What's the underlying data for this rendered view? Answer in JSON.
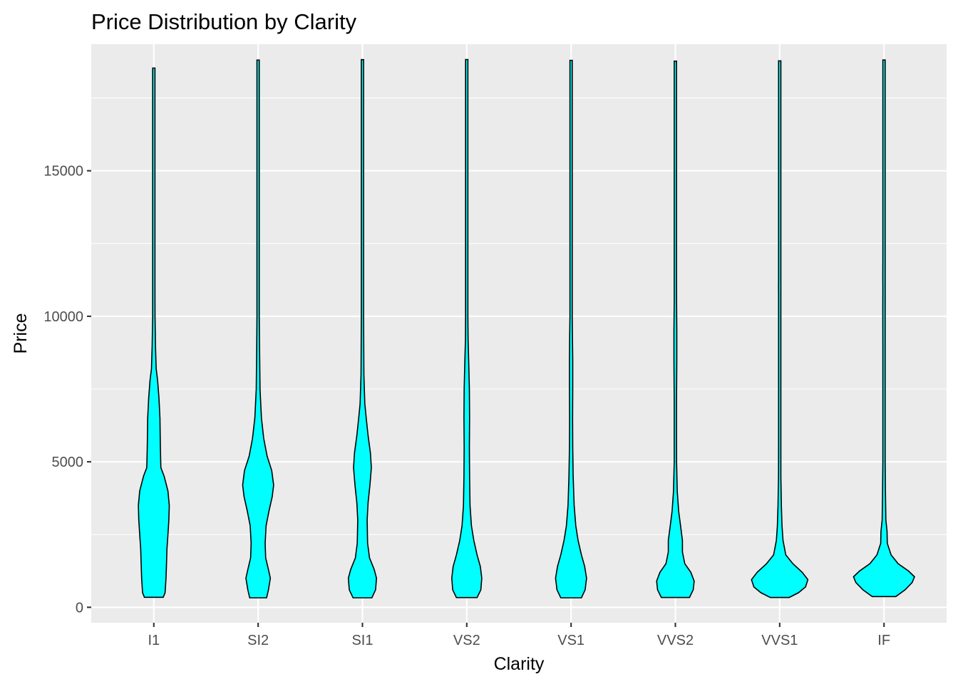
{
  "chart_data": {
    "type": "violin",
    "title": "Price Distribution by Clarity",
    "xlabel": "Clarity",
    "ylabel": "Price",
    "ylim": [
      -530,
      19350
    ],
    "yticks": [
      0,
      5000,
      10000,
      15000
    ],
    "grid": true,
    "fill_color": "#00ffff",
    "outline_color": "#000000",
    "panel_color": "#ebebeb",
    "categories": [
      "I1",
      "SI2",
      "SI1",
      "VS2",
      "VS1",
      "VVS2",
      "VVS1",
      "IF"
    ],
    "series": [
      {
        "category": "I1",
        "min": 345,
        "max": 18531,
        "profile": [
          [
            345,
            0.2
          ],
          [
            500,
            0.24
          ],
          [
            1000,
            0.26
          ],
          [
            1500,
            0.27
          ],
          [
            2000,
            0.28
          ],
          [
            2500,
            0.3
          ],
          [
            3000,
            0.32
          ],
          [
            3500,
            0.33
          ],
          [
            4000,
            0.3
          ],
          [
            4500,
            0.22
          ],
          [
            4800,
            0.15
          ],
          [
            5500,
            0.14
          ],
          [
            6500,
            0.13
          ],
          [
            7200,
            0.11
          ],
          [
            7800,
            0.08
          ],
          [
            8200,
            0.05
          ],
          [
            9000,
            0.035
          ],
          [
            10000,
            0.025
          ],
          [
            11000,
            0.02
          ],
          [
            12000,
            0.017
          ],
          [
            15000,
            0.016
          ],
          [
            18531,
            0.016
          ]
        ]
      },
      {
        "category": "SI2",
        "min": 326,
        "max": 18804,
        "profile": [
          [
            326,
            0.18
          ],
          [
            600,
            0.22
          ],
          [
            1000,
            0.26
          ],
          [
            1300,
            0.22
          ],
          [
            1700,
            0.16
          ],
          [
            2200,
            0.15
          ],
          [
            2800,
            0.17
          ],
          [
            3300,
            0.23
          ],
          [
            3800,
            0.3
          ],
          [
            4200,
            0.33
          ],
          [
            4700,
            0.29
          ],
          [
            5200,
            0.19
          ],
          [
            5800,
            0.12
          ],
          [
            6500,
            0.07
          ],
          [
            7500,
            0.04
          ],
          [
            9000,
            0.03
          ],
          [
            10000,
            0.022
          ],
          [
            12000,
            0.018
          ],
          [
            18804,
            0.016
          ]
        ]
      },
      {
        "category": "SI1",
        "min": 326,
        "max": 18818,
        "profile": [
          [
            326,
            0.2
          ],
          [
            600,
            0.28
          ],
          [
            1000,
            0.3
          ],
          [
            1300,
            0.25
          ],
          [
            1700,
            0.15
          ],
          [
            2200,
            0.11
          ],
          [
            3000,
            0.1
          ],
          [
            3600,
            0.12
          ],
          [
            4200,
            0.16
          ],
          [
            4800,
            0.19
          ],
          [
            5300,
            0.17
          ],
          [
            5900,
            0.12
          ],
          [
            6500,
            0.08
          ],
          [
            7000,
            0.05
          ],
          [
            8000,
            0.03
          ],
          [
            10000,
            0.022
          ],
          [
            12500,
            0.018
          ],
          [
            13000,
            0.016
          ],
          [
            18818,
            0.016
          ]
        ]
      },
      {
        "category": "VS2",
        "min": 334,
        "max": 18823,
        "profile": [
          [
            334,
            0.22
          ],
          [
            600,
            0.3
          ],
          [
            1000,
            0.32
          ],
          [
            1400,
            0.29
          ],
          [
            1800,
            0.22
          ],
          [
            2300,
            0.15
          ],
          [
            2800,
            0.1
          ],
          [
            3500,
            0.07
          ],
          [
            4500,
            0.06
          ],
          [
            5500,
            0.055
          ],
          [
            6500,
            0.06
          ],
          [
            7500,
            0.055
          ],
          [
            8500,
            0.04
          ],
          [
            9200,
            0.028
          ],
          [
            10000,
            0.022
          ],
          [
            12000,
            0.02
          ],
          [
            15000,
            0.018
          ],
          [
            18823,
            0.016
          ]
        ]
      },
      {
        "category": "VS1",
        "min": 327,
        "max": 18795,
        "profile": [
          [
            327,
            0.22
          ],
          [
            600,
            0.3
          ],
          [
            1000,
            0.33
          ],
          [
            1400,
            0.29
          ],
          [
            1800,
            0.22
          ],
          [
            2300,
            0.15
          ],
          [
            2800,
            0.1
          ],
          [
            3500,
            0.065
          ],
          [
            4500,
            0.045
          ],
          [
            5500,
            0.035
          ],
          [
            6500,
            0.032
          ],
          [
            7500,
            0.035
          ],
          [
            8500,
            0.035
          ],
          [
            9300,
            0.03
          ],
          [
            10000,
            0.02
          ],
          [
            11500,
            0.018
          ],
          [
            12000,
            0.016
          ],
          [
            18795,
            0.016
          ]
        ]
      },
      {
        "category": "VVS2",
        "min": 336,
        "max": 18768,
        "profile": [
          [
            336,
            0.3
          ],
          [
            600,
            0.38
          ],
          [
            900,
            0.4
          ],
          [
            1200,
            0.33
          ],
          [
            1500,
            0.2
          ],
          [
            1900,
            0.15
          ],
          [
            2300,
            0.15
          ],
          [
            2800,
            0.11
          ],
          [
            3300,
            0.07
          ],
          [
            4000,
            0.04
          ],
          [
            5000,
            0.025
          ],
          [
            6000,
            0.02
          ],
          [
            7000,
            0.022
          ],
          [
            8500,
            0.03
          ],
          [
            9500,
            0.03
          ],
          [
            10500,
            0.025
          ],
          [
            11500,
            0.022
          ],
          [
            13000,
            0.018
          ],
          [
            15000,
            0.022
          ],
          [
            16000,
            0.016
          ],
          [
            18768,
            0.016
          ]
        ]
      },
      {
        "category": "VVS1",
        "min": 336,
        "max": 18777,
        "profile": [
          [
            336,
            0.2
          ],
          [
            500,
            0.4
          ],
          [
            700,
            0.55
          ],
          [
            950,
            0.6
          ],
          [
            1200,
            0.48
          ],
          [
            1500,
            0.28
          ],
          [
            1800,
            0.13
          ],
          [
            2300,
            0.07
          ],
          [
            2800,
            0.05
          ],
          [
            3500,
            0.035
          ],
          [
            4500,
            0.025
          ],
          [
            5500,
            0.02
          ],
          [
            8000,
            0.018
          ],
          [
            10800,
            0.022
          ],
          [
            11000,
            0.025
          ],
          [
            11200,
            0.018
          ],
          [
            12000,
            0.016
          ],
          [
            18777,
            0.016
          ]
        ]
      },
      {
        "category": "IF",
        "min": 369,
        "max": 18806,
        "profile": [
          [
            369,
            0.25
          ],
          [
            600,
            0.45
          ],
          [
            850,
            0.6
          ],
          [
            1050,
            0.65
          ],
          [
            1250,
            0.52
          ],
          [
            1500,
            0.3
          ],
          [
            1800,
            0.15
          ],
          [
            2200,
            0.07
          ],
          [
            2600,
            0.065
          ],
          [
            3000,
            0.04
          ],
          [
            3500,
            0.035
          ],
          [
            4000,
            0.03
          ],
          [
            5000,
            0.02
          ],
          [
            7000,
            0.018
          ],
          [
            9000,
            0.02
          ],
          [
            10200,
            0.025
          ],
          [
            11000,
            0.02
          ],
          [
            11400,
            0.025
          ],
          [
            12000,
            0.018
          ],
          [
            14000,
            0.018
          ],
          [
            16000,
            0.018
          ],
          [
            18806,
            0.016
          ]
        ]
      }
    ]
  }
}
